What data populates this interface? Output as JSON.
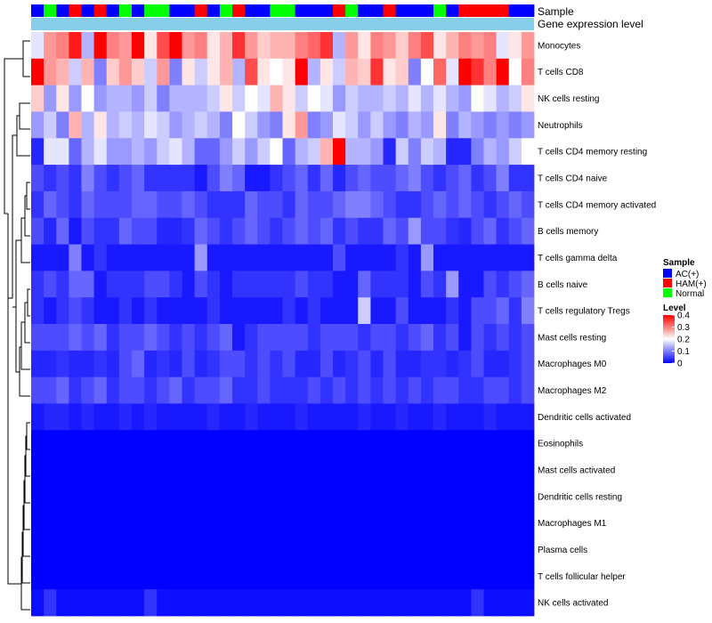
{
  "chart_data": {
    "type": "heatmap",
    "annotation_labels": [
      "Sample",
      "Gene expression level"
    ],
    "sample_groups": [
      "A",
      "N",
      "A",
      "H",
      "A",
      "H",
      "A",
      "N",
      "A",
      "N",
      "N",
      "A",
      "A",
      "H",
      "A",
      "N",
      "H",
      "A",
      "A",
      "N",
      "N",
      "A",
      "A",
      "A",
      "H",
      "N",
      "A",
      "A",
      "H",
      "A",
      "A",
      "A",
      "N",
      "A",
      "H",
      "H",
      "H",
      "H",
      "A",
      "A"
    ],
    "rows": [
      "Monocytes",
      "T cells CD8",
      "NK cells resting",
      "Neutrophils",
      "T cells CD4 memory resting",
      "T cells CD4 naive",
      "T cells CD4 memory activated",
      "B cells memory",
      "T cells gamma delta",
      "B cells naive",
      "T cells regulatory  Tregs",
      "Mast cells resting",
      "Macrophages M0",
      "Macrophages M2",
      "Dendritic cells activated",
      "Eosinophils",
      "Mast cells activated",
      "Dendritic cells resting",
      "Macrophages M1",
      "Plasma cells",
      "T cells follicular helper",
      "NK cells activated"
    ],
    "values": [
      [
        0.18,
        0.28,
        0.3,
        0.38,
        0.14,
        0.4,
        0.3,
        0.28,
        0.4,
        0.22,
        0.34,
        0.4,
        0.28,
        0.3,
        0.22,
        0.26,
        0.36,
        0.28,
        0.24,
        0.26,
        0.26,
        0.3,
        0.32,
        0.36,
        0.14,
        0.28,
        0.22,
        0.3,
        0.28,
        0.24,
        0.3,
        0.34,
        0.22,
        0.26,
        0.3,
        0.28,
        0.3,
        0.18,
        0.22,
        0.28
      ],
      [
        0.4,
        0.28,
        0.26,
        0.16,
        0.26,
        0.1,
        0.24,
        0.28,
        0.24,
        0.16,
        0.28,
        0.1,
        0.22,
        0.16,
        0.22,
        0.26,
        0.14,
        0.34,
        0.22,
        0.2,
        0.22,
        0.4,
        0.14,
        0.22,
        0.16,
        0.26,
        0.24,
        0.36,
        0.22,
        0.24,
        0.1,
        0.2,
        0.32,
        0.18,
        0.4,
        0.36,
        0.3,
        0.4,
        0.2,
        0.3
      ],
      [
        0.24,
        0.12,
        0.22,
        0.12,
        0.2,
        0.12,
        0.14,
        0.14,
        0.12,
        0.16,
        0.1,
        0.14,
        0.14,
        0.14,
        0.16,
        0.22,
        0.16,
        0.2,
        0.18,
        0.26,
        0.22,
        0.16,
        0.2,
        0.18,
        0.12,
        0.16,
        0.14,
        0.14,
        0.16,
        0.14,
        0.18,
        0.14,
        0.18,
        0.14,
        0.12,
        0.2,
        0.18,
        0.14,
        0.16,
        0.22
      ],
      [
        0.12,
        0.16,
        0.1,
        0.26,
        0.14,
        0.22,
        0.14,
        0.16,
        0.14,
        0.18,
        0.16,
        0.12,
        0.14,
        0.16,
        0.14,
        0.1,
        0.2,
        0.16,
        0.12,
        0.1,
        0.22,
        0.28,
        0.1,
        0.12,
        0.18,
        0.16,
        0.12,
        0.16,
        0.12,
        0.1,
        0.14,
        0.12,
        0.22,
        0.1,
        0.14,
        0.12,
        0.1,
        0.12,
        0.1,
        0.12
      ],
      [
        0.03,
        0.18,
        0.18,
        0.08,
        0.14,
        0.18,
        0.12,
        0.12,
        0.14,
        0.12,
        0.16,
        0.18,
        0.14,
        0.08,
        0.08,
        0.12,
        0.16,
        0.12,
        0.16,
        0.2,
        0.08,
        0.14,
        0.16,
        0.26,
        0.4,
        0.14,
        0.14,
        0.12,
        0.03,
        0.16,
        0.1,
        0.16,
        0.14,
        0.03,
        0.03,
        0.1,
        0.14,
        0.12,
        0.16,
        0.2
      ],
      [
        0.06,
        0.04,
        0.06,
        0.04,
        0.1,
        0.06,
        0.04,
        0.06,
        0.08,
        0.04,
        0.04,
        0.04,
        0.04,
        0.02,
        0.06,
        0.1,
        0.08,
        0.02,
        0.02,
        0.04,
        0.06,
        0.08,
        0.04,
        0.08,
        0.03,
        0.06,
        0.08,
        0.06,
        0.06,
        0.08,
        0.1,
        0.06,
        0.04,
        0.06,
        0.08,
        0.04,
        0.06,
        0.1,
        0.04,
        0.04
      ],
      [
        0.04,
        0.08,
        0.06,
        0.04,
        0.08,
        0.06,
        0.06,
        0.06,
        0.08,
        0.08,
        0.06,
        0.06,
        0.08,
        0.06,
        0.04,
        0.04,
        0.04,
        0.08,
        0.06,
        0.06,
        0.04,
        0.08,
        0.06,
        0.06,
        0.08,
        0.1,
        0.1,
        0.08,
        0.06,
        0.04,
        0.04,
        0.06,
        0.08,
        0.06,
        0.08,
        0.06,
        0.04,
        0.06,
        0.08,
        0.06
      ],
      [
        0.06,
        0.03,
        0.08,
        0.02,
        0.06,
        0.04,
        0.04,
        0.08,
        0.06,
        0.06,
        0.03,
        0.03,
        0.04,
        0.08,
        0.06,
        0.04,
        0.06,
        0.08,
        0.06,
        0.04,
        0.06,
        0.08,
        0.06,
        0.08,
        0.04,
        0.06,
        0.04,
        0.04,
        0.08,
        0.06,
        0.12,
        0.06,
        0.06,
        0.04,
        0.03,
        0.06,
        0.08,
        0.04,
        0.06,
        0.08
      ],
      [
        0.02,
        0.02,
        0.02,
        0.1,
        0.02,
        0.04,
        0.02,
        0.02,
        0.02,
        0.02,
        0.02,
        0.02,
        0.02,
        0.12,
        0.02,
        0.02,
        0.02,
        0.02,
        0.02,
        0.02,
        0.02,
        0.02,
        0.02,
        0.02,
        0.06,
        0.02,
        0.02,
        0.02,
        0.02,
        0.04,
        0.02,
        0.12,
        0.02,
        0.02,
        0.02,
        0.02,
        0.02,
        0.02,
        0.02,
        0.02
      ],
      [
        0.04,
        0.06,
        0.04,
        0.08,
        0.08,
        0.02,
        0.04,
        0.04,
        0.04,
        0.06,
        0.06,
        0.04,
        0.02,
        0.06,
        0.04,
        0.02,
        0.04,
        0.04,
        0.04,
        0.04,
        0.04,
        0.06,
        0.04,
        0.04,
        0.02,
        0.02,
        0.08,
        0.04,
        0.04,
        0.04,
        0.02,
        0.06,
        0.04,
        0.12,
        0.02,
        0.02,
        0.06,
        0.04,
        0.06,
        0.08
      ],
      [
        0.04,
        0.02,
        0.04,
        0.06,
        0.04,
        0.02,
        0.02,
        0.04,
        0.02,
        0.04,
        0.02,
        0.02,
        0.02,
        0.02,
        0.04,
        0.02,
        0.02,
        0.02,
        0.02,
        0.02,
        0.04,
        0.02,
        0.04,
        0.02,
        0.02,
        0.02,
        0.16,
        0.02,
        0.02,
        0.06,
        0.02,
        0.02,
        0.02,
        0.04,
        0.02,
        0.06,
        0.06,
        0.08,
        0.04,
        0.1
      ],
      [
        0.06,
        0.06,
        0.06,
        0.08,
        0.06,
        0.08,
        0.04,
        0.06,
        0.06,
        0.08,
        0.06,
        0.04,
        0.06,
        0.04,
        0.06,
        0.08,
        0.02,
        0.04,
        0.06,
        0.06,
        0.06,
        0.06,
        0.04,
        0.06,
        0.06,
        0.06,
        0.04,
        0.06,
        0.06,
        0.04,
        0.06,
        0.08,
        0.04,
        0.06,
        0.02,
        0.06,
        0.04,
        0.06,
        0.04,
        0.06
      ],
      [
        0.03,
        0.03,
        0.04,
        0.03,
        0.03,
        0.04,
        0.03,
        0.06,
        0.08,
        0.03,
        0.04,
        0.03,
        0.06,
        0.03,
        0.04,
        0.06,
        0.06,
        0.04,
        0.06,
        0.04,
        0.06,
        0.03,
        0.03,
        0.06,
        0.03,
        0.04,
        0.06,
        0.03,
        0.06,
        0.03,
        0.03,
        0.04,
        0.04,
        0.03,
        0.04,
        0.06,
        0.03,
        0.03,
        0.04,
        0.06
      ],
      [
        0.06,
        0.06,
        0.08,
        0.04,
        0.06,
        0.08,
        0.04,
        0.06,
        0.06,
        0.04,
        0.06,
        0.08,
        0.04,
        0.06,
        0.06,
        0.08,
        0.04,
        0.04,
        0.06,
        0.04,
        0.04,
        0.04,
        0.06,
        0.04,
        0.06,
        0.04,
        0.06,
        0.04,
        0.06,
        0.04,
        0.06,
        0.04,
        0.06,
        0.06,
        0.04,
        0.04,
        0.06,
        0.06,
        0.04,
        0.06
      ],
      [
        0.02,
        0.03,
        0.03,
        0.02,
        0.03,
        0.02,
        0.02,
        0.03,
        0.02,
        0.03,
        0.02,
        0.02,
        0.02,
        0.02,
        0.03,
        0.02,
        0.02,
        0.03,
        0.02,
        0.02,
        0.02,
        0.03,
        0.02,
        0.02,
        0.02,
        0.02,
        0.03,
        0.02,
        0.02,
        0.03,
        0.02,
        0.02,
        0.03,
        0.02,
        0.02,
        0.02,
        0.03,
        0.02,
        0.02,
        0.02
      ],
      [
        0,
        0,
        0,
        0,
        0,
        0,
        0,
        0,
        0,
        0,
        0,
        0,
        0,
        0,
        0,
        0,
        0,
        0,
        0,
        0,
        0,
        0,
        0,
        0,
        0,
        0,
        0,
        0,
        0,
        0,
        0,
        0,
        0,
        0,
        0,
        0,
        0,
        0,
        0,
        0
      ],
      [
        0,
        0,
        0,
        0,
        0,
        0,
        0,
        0,
        0,
        0,
        0,
        0,
        0,
        0,
        0,
        0,
        0,
        0,
        0,
        0,
        0,
        0,
        0,
        0,
        0,
        0,
        0,
        0,
        0,
        0,
        0,
        0,
        0,
        0,
        0,
        0,
        0,
        0,
        0,
        0
      ],
      [
        0,
        0,
        0,
        0,
        0,
        0,
        0,
        0,
        0,
        0,
        0,
        0,
        0,
        0,
        0,
        0,
        0,
        0,
        0,
        0,
        0,
        0,
        0,
        0,
        0,
        0,
        0,
        0,
        0,
        0,
        0,
        0,
        0,
        0,
        0,
        0,
        0,
        0,
        0,
        0
      ],
      [
        0,
        0,
        0,
        0,
        0,
        0,
        0,
        0,
        0,
        0,
        0,
        0,
        0,
        0,
        0,
        0,
        0,
        0,
        0,
        0,
        0,
        0,
        0,
        0,
        0,
        0,
        0,
        0,
        0,
        0,
        0,
        0,
        0,
        0,
        0,
        0,
        0,
        0,
        0,
        0
      ],
      [
        0,
        0,
        0,
        0,
        0,
        0,
        0,
        0,
        0,
        0,
        0,
        0,
        0,
        0,
        0,
        0,
        0,
        0,
        0,
        0,
        0,
        0,
        0,
        0,
        0,
        0,
        0,
        0,
        0,
        0,
        0,
        0,
        0,
        0,
        0,
        0,
        0,
        0,
        0,
        0
      ],
      [
        0,
        0,
        0,
        0,
        0,
        0,
        0,
        0,
        0,
        0,
        0,
        0,
        0,
        0,
        0,
        0,
        0,
        0,
        0,
        0,
        0,
        0,
        0,
        0,
        0,
        0,
        0,
        0,
        0,
        0,
        0,
        0,
        0,
        0,
        0,
        0,
        0,
        0,
        0,
        0
      ],
      [
        0.01,
        0.04,
        0.01,
        0.01,
        0.01,
        0.01,
        0.01,
        0.01,
        0.01,
        0.04,
        0.01,
        0.01,
        0.01,
        0.01,
        0.01,
        0.01,
        0.01,
        0.01,
        0.01,
        0.01,
        0.01,
        0.01,
        0.01,
        0.01,
        0.01,
        0.01,
        0.01,
        0.01,
        0.01,
        0.01,
        0.01,
        0.01,
        0.01,
        0.01,
        0.01,
        0.04,
        0.01,
        0.01,
        0.01,
        0.01
      ]
    ],
    "legend_sample": {
      "title": "Sample",
      "entries": [
        {
          "label": "AC(+)",
          "code": "A",
          "color": "#0000ff"
        },
        {
          "label": "HAM(+)",
          "code": "H",
          "color": "#ff0000"
        },
        {
          "label": "Normal",
          "code": "N",
          "color": "#00ff00"
        }
      ]
    },
    "legend_level": {
      "title": "Level",
      "ticks": [
        "0.4",
        "0.3",
        "0.2",
        "0.1",
        "0"
      ],
      "range": [
        0,
        0.4
      ]
    },
    "colors": {
      "low": "#0000ff",
      "mid": "#ffffff",
      "high": "#ff0000",
      "annotation_level": "#87ceeb"
    }
  }
}
